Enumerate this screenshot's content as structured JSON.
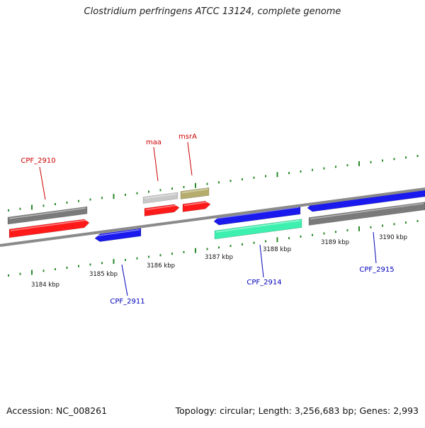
{
  "title": "Clostridium perfringens ATCC 13124, complete genome",
  "footer": {
    "accession": "Accession: NC_008261",
    "summary": "Topology: circular; Length: 3,256,683 bp; Genes: 2,993"
  },
  "colors": {
    "backbone": "#8a8a8a",
    "tick": "#2a8a2a",
    "forward_label": "#cc0000",
    "reverse_label": "#0000bb",
    "red": "#ff1a1a",
    "blue": "#1a1aee",
    "gray": "#7a7a7a",
    "lightgray": "#c8c8c8",
    "olive": "#b5ad6e",
    "teal": "#3df0b0"
  },
  "scale_labels": [
    "3184 kbp",
    "3185 kbp",
    "3186 kbp",
    "3187 kbp",
    "3188 kbp",
    "3189 kbp",
    "3190 kbp"
  ],
  "gene_labels": [
    {
      "text": "CPF_2910",
      "strand": "forward"
    },
    {
      "text": "maa",
      "strand": "forward"
    },
    {
      "text": "msrA",
      "strand": "forward"
    },
    {
      "text": "CPF_2911",
      "strand": "reverse"
    },
    {
      "text": "CPF_2914",
      "strand": "reverse"
    },
    {
      "text": "CPF_2915",
      "strand": "reverse"
    }
  ]
}
